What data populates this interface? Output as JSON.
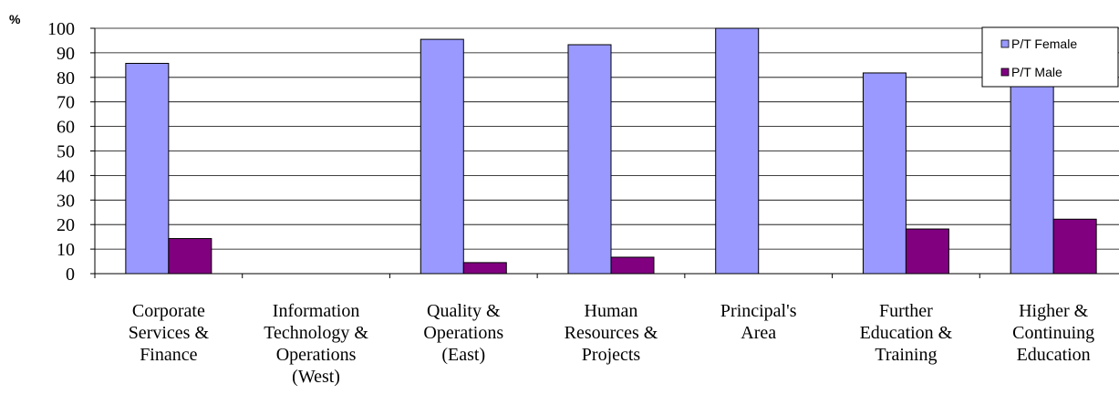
{
  "chart_data": {
    "type": "bar",
    "title": "",
    "xlabel": "",
    "ylabel": "%",
    "ylim": [
      0,
      100
    ],
    "yticks": [
      0,
      10,
      20,
      30,
      40,
      50,
      60,
      70,
      80,
      90,
      100
    ],
    "grid": true,
    "legend_position": "top-right",
    "categories": [
      [
        "Corporate",
        "Services &",
        "Finance"
      ],
      [
        "Information",
        "Technology &",
        "Operations",
        "(West)"
      ],
      [
        "Quality &",
        "Operations",
        "(East)"
      ],
      [
        "Human",
        "Resources &",
        "Projects"
      ],
      [
        "Principal's",
        "Area"
      ],
      [
        "Further",
        "Education &",
        "Training"
      ],
      [
        "Higher &",
        "Continuing",
        "Education"
      ]
    ],
    "series": [
      {
        "name": "P/T Female",
        "color": "#9999ff",
        "values": [
          85.7,
          0,
          95.5,
          93.3,
          100,
          81.8,
          77.8
        ]
      },
      {
        "name": "P/T Male",
        "color": "#800080",
        "values": [
          14.3,
          0,
          4.5,
          6.7,
          0,
          18.2,
          22.2
        ]
      }
    ]
  }
}
